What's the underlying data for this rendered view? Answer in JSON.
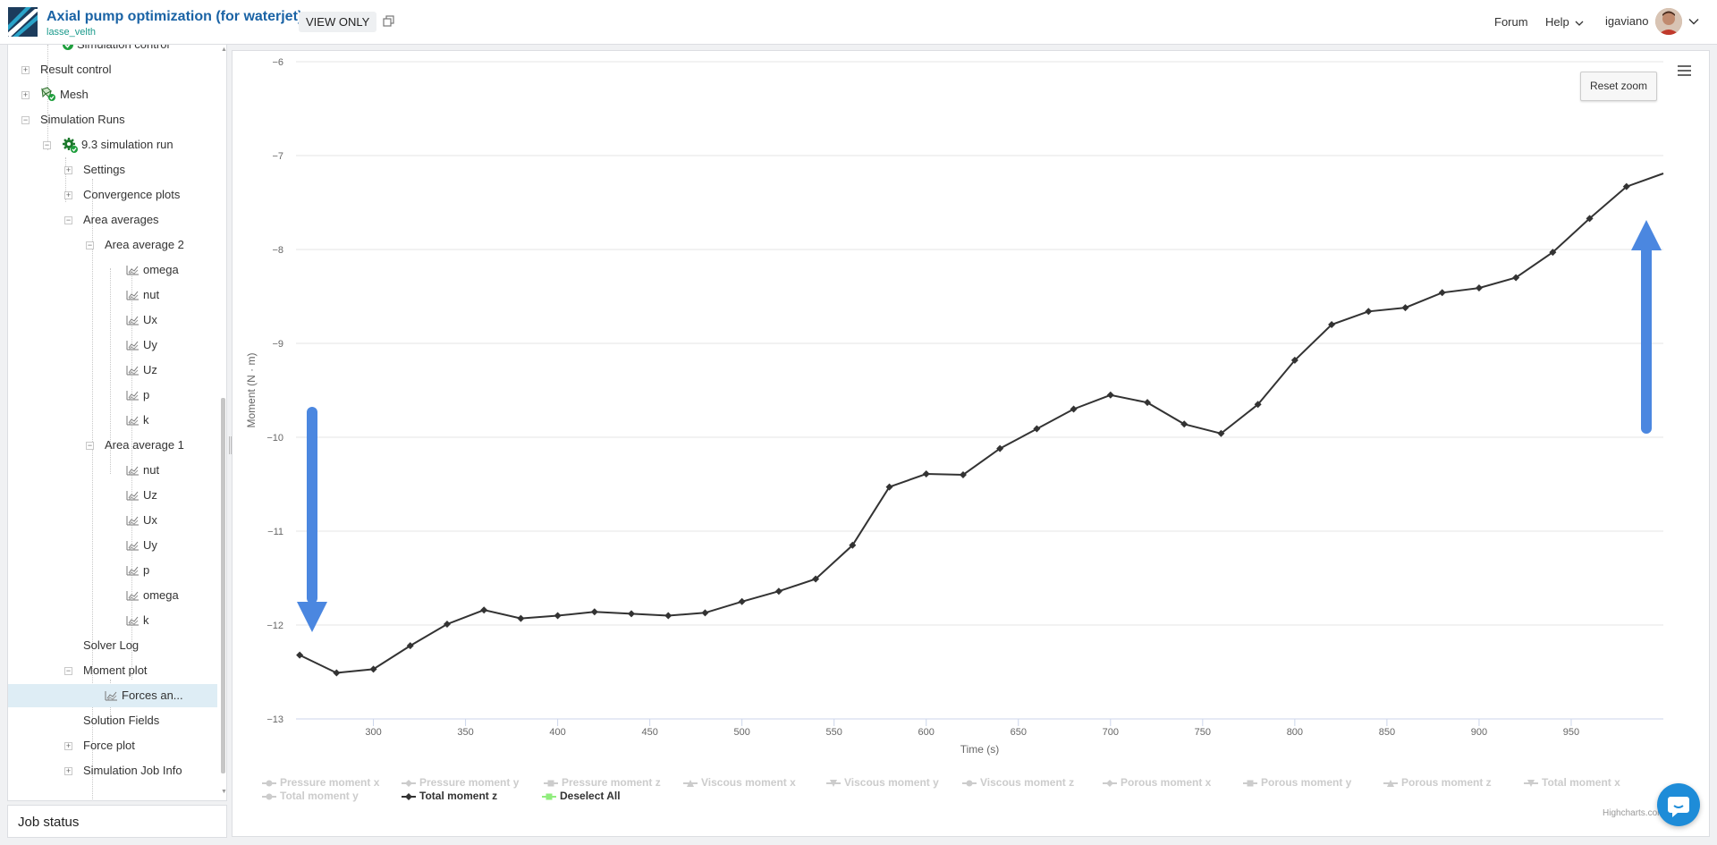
{
  "header": {
    "project_title": "Axial pump optimization (for waterjet)",
    "owner": "lasse_velth",
    "view_only": "VIEW ONLY",
    "nav_forum": "Forum",
    "nav_help": "Help",
    "username": "igaviano",
    "icons": {
      "logo": "simscale-logo",
      "copy": "copy-icon",
      "help_chevron": "chevron-down-icon",
      "user_chevron": "chevron-down-icon"
    }
  },
  "sidebar": {
    "items": [
      {
        "label": "Simulation control",
        "icon": "check-circle-icon",
        "state": "ok"
      },
      {
        "label": "Result control",
        "toggle": "+"
      },
      {
        "label": "Mesh",
        "toggle": "+",
        "icon": "mesh-icon"
      },
      {
        "label": "Simulation Runs",
        "toggle": "−"
      },
      {
        "label": "9.3 simulation run",
        "toggle": "−",
        "icon": "gear-check-icon"
      },
      {
        "label": "Settings",
        "toggle": "+"
      },
      {
        "label": "Convergence plots",
        "toggle": "+"
      },
      {
        "label": "Area averages",
        "toggle": "−"
      },
      {
        "label": "Area average 2",
        "toggle": "−"
      },
      {
        "label": "omega",
        "icon": "chart-icon"
      },
      {
        "label": "nut",
        "icon": "chart-icon"
      },
      {
        "label": "Ux",
        "icon": "chart-icon"
      },
      {
        "label": "Uy",
        "icon": "chart-icon"
      },
      {
        "label": "Uz",
        "icon": "chart-icon"
      },
      {
        "label": "p",
        "icon": "chart-icon"
      },
      {
        "label": "k",
        "icon": "chart-icon"
      },
      {
        "label": "Area average 1",
        "toggle": "−"
      },
      {
        "label": "nut",
        "icon": "chart-icon"
      },
      {
        "label": "Uz",
        "icon": "chart-icon"
      },
      {
        "label": "Ux",
        "icon": "chart-icon"
      },
      {
        "label": "Uy",
        "icon": "chart-icon"
      },
      {
        "label": "p",
        "icon": "chart-icon"
      },
      {
        "label": "omega",
        "icon": "chart-icon"
      },
      {
        "label": "k",
        "icon": "chart-icon"
      },
      {
        "label": "Solver Log"
      },
      {
        "label": "Moment plot",
        "toggle": "−"
      },
      {
        "label": "Forces an...",
        "icon": "chart-icon",
        "selected": true
      },
      {
        "label": "Solution Fields"
      },
      {
        "label": "Force plot",
        "toggle": "+"
      },
      {
        "label": "Simulation Job Info",
        "toggle": "+"
      }
    ]
  },
  "job_status": {
    "title": "Job status"
  },
  "chart": {
    "reset_zoom": "Reset zoom",
    "credits": "Highcharts.com",
    "deselect_all": "Deselect All",
    "icons": {
      "menu": "hamburger-menu-icon",
      "chat": "chat-bubble-icon",
      "annotation": "arrow-icon"
    },
    "colors": {
      "active_series": "#333333",
      "inactive": "#cccccc",
      "deselect": "#90ed7d",
      "annotation": "#4b87e0"
    }
  },
  "chart_data": {
    "type": "line",
    "xlabel": "Time (s)",
    "ylabel": "Moment (N · m)",
    "xlim": [
      258,
      1000
    ],
    "ylim": [
      -13,
      -6
    ],
    "x_ticks": [
      300,
      350,
      400,
      450,
      500,
      550,
      600,
      650,
      700,
      750,
      800,
      850,
      900,
      950
    ],
    "y_ticks": [
      -6,
      -7,
      -8,
      -9,
      -10,
      -11,
      -12,
      -13
    ],
    "grid": true,
    "legend_position": "bottom-left",
    "legend": [
      {
        "name": "Pressure moment x",
        "active": false,
        "marker": "circle"
      },
      {
        "name": "Pressure moment y",
        "active": false,
        "marker": "diamond"
      },
      {
        "name": "Pressure moment z",
        "active": false,
        "marker": "square"
      },
      {
        "name": "Viscous moment x",
        "active": false,
        "marker": "triangle"
      },
      {
        "name": "Viscous moment y",
        "active": false,
        "marker": "triangle-down"
      },
      {
        "name": "Viscous moment z",
        "active": false,
        "marker": "circle"
      },
      {
        "name": "Porous moment x",
        "active": false,
        "marker": "diamond"
      },
      {
        "name": "Porous moment y",
        "active": false,
        "marker": "square"
      },
      {
        "name": "Porous moment z",
        "active": false,
        "marker": "triangle"
      },
      {
        "name": "Total moment x",
        "active": false,
        "marker": "triangle-down"
      },
      {
        "name": "Total moment y",
        "active": false,
        "marker": "circle"
      },
      {
        "name": "Total moment z",
        "active": true,
        "marker": "diamond"
      }
    ],
    "series": [
      {
        "name": "Total moment z",
        "x": [
          260,
          280,
          300,
          320,
          340,
          360,
          380,
          400,
          420,
          440,
          460,
          480,
          500,
          520,
          540,
          560,
          580,
          600,
          620,
          640,
          660,
          680,
          700,
          720,
          740,
          760,
          780,
          800,
          820,
          840,
          860,
          880,
          900,
          920,
          940,
          960,
          980,
          1000
        ],
        "y": [
          -12.32,
          -12.51,
          -12.47,
          -12.22,
          -11.99,
          -11.84,
          -11.93,
          -11.9,
          -11.86,
          -11.88,
          -11.9,
          -11.87,
          -11.75,
          -11.64,
          -11.51,
          -11.15,
          -10.53,
          -10.39,
          -10.4,
          -10.12,
          -9.91,
          -9.7,
          -9.55,
          -9.63,
          -9.86,
          -9.96,
          -9.65,
          -9.18,
          -8.8,
          -8.66,
          -8.62,
          -8.46,
          -8.41,
          -8.3,
          -8.03,
          -7.67,
          -7.33,
          -7.19
        ]
      }
    ]
  }
}
